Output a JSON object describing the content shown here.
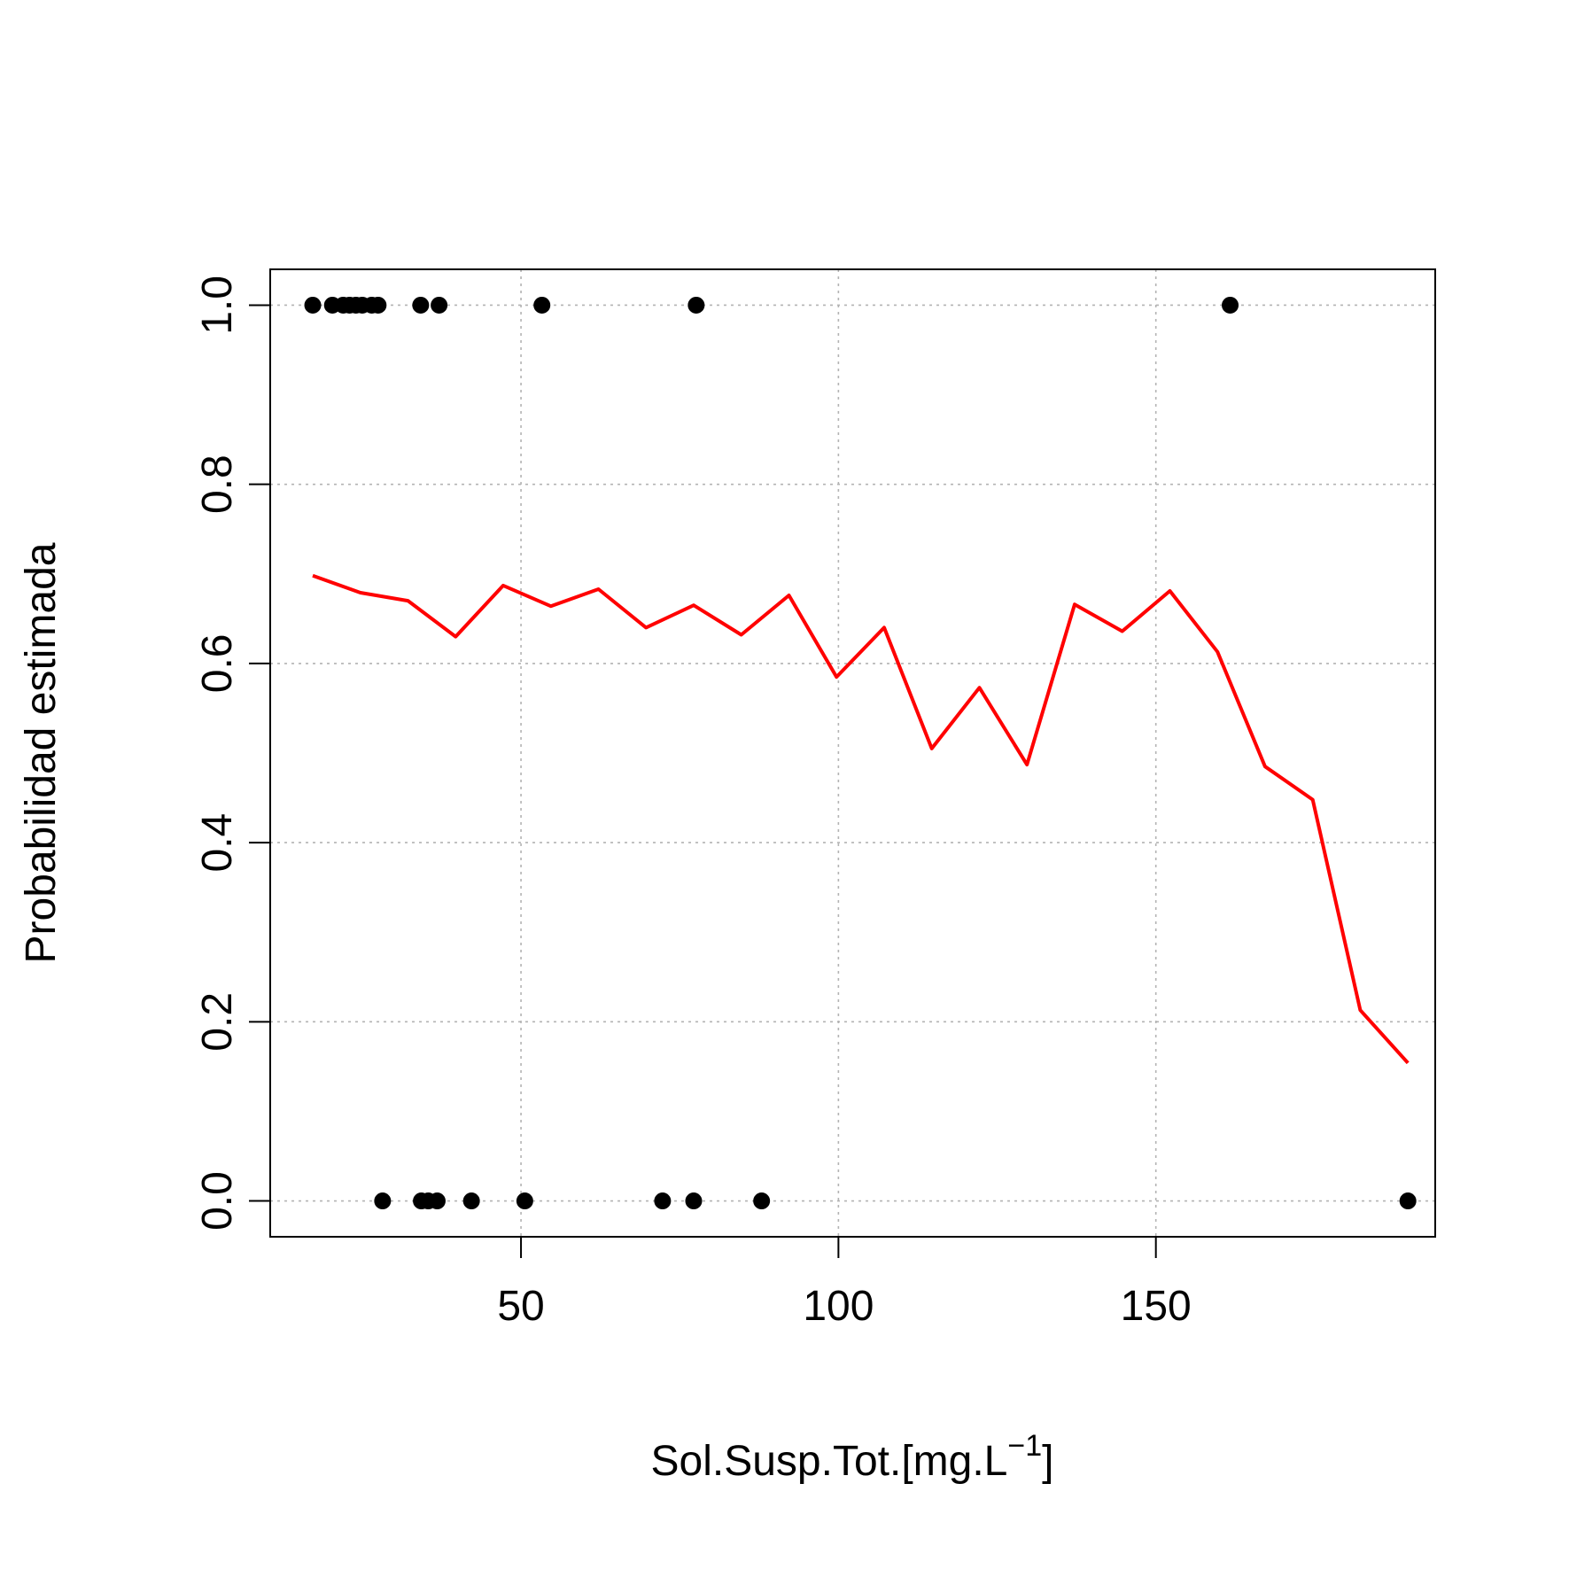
{
  "chart_data": {
    "type": "scatter",
    "xlabel": "Sol.Susp.Tot.[mg.L",
    "xlabel_superscript": "−1",
    "xlabel_suffix": "]",
    "ylabel": "Probabilidad estimada",
    "xlim": [
      10.5,
      194
    ],
    "ylim": [
      -0.04,
      1.04
    ],
    "xticks": [
      50,
      100,
      150
    ],
    "xtick_labels": [
      "50",
      "100",
      "150"
    ],
    "yticks": [
      0.0,
      0.2,
      0.4,
      0.6,
      0.8,
      1.0
    ],
    "ytick_labels": [
      "0.0",
      "0.2",
      "0.4",
      "0.6",
      "0.8",
      "1.0"
    ],
    "grid": true,
    "legend": "none",
    "series": [
      {
        "kind": "points",
        "color": "#000000",
        "x": [
          17.2,
          20.3,
          22.0,
          23.0,
          24.0,
          25.0,
          26.5,
          27.5,
          34.2,
          37.1,
          53.3,
          77.6,
          161.7,
          28.2,
          34.3,
          35.4,
          36.8,
          42.2,
          50.6,
          72.3,
          77.2,
          87.9,
          189.7
        ],
        "y": [
          1,
          1,
          1,
          1,
          1,
          1,
          1,
          1,
          1,
          1,
          1,
          1,
          1,
          0,
          0,
          0,
          0,
          0,
          0,
          0,
          0,
          0,
          0
        ]
      },
      {
        "kind": "line",
        "color": "#ff0000",
        "x": [
          17.2,
          24.7,
          32.2,
          39.7,
          47.2,
          54.7,
          62.2,
          69.7,
          77.2,
          84.7,
          92.2,
          99.7,
          107.2,
          114.7,
          122.2,
          129.7,
          137.2,
          144.7,
          152.2,
          159.7,
          167.2,
          174.7,
          182.2,
          189.7
        ],
        "y": [
          0.698,
          0.679,
          0.67,
          0.63,
          0.687,
          0.664,
          0.683,
          0.64,
          0.665,
          0.632,
          0.676,
          0.585,
          0.64,
          0.505,
          0.573,
          0.487,
          0.666,
          0.636,
          0.681,
          0.613,
          0.485,
          0.448,
          0.213,
          0.154
        ]
      }
    ]
  }
}
